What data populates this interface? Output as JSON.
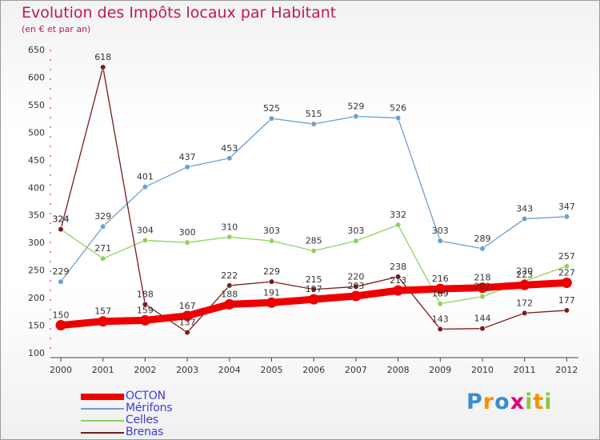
{
  "title": "Evolution des Impôts locaux par Habitant",
  "subtitle": "(en € et par an)",
  "logo": {
    "letters": [
      "P",
      "r",
      "o",
      "x",
      "i",
      "t",
      "i"
    ],
    "colors": [
      "#3b8dd0",
      "#f39200",
      "#3b8dd0",
      "#e2007a",
      "#8cc63f",
      "#f39200",
      "#8cc63f"
    ]
  },
  "chart_data": {
    "type": "line",
    "title": "Evolution des Impôts locaux par Habitant",
    "subtitle": "(en € et par an)",
    "xlabel": "",
    "ylabel": "",
    "x": [
      "2000",
      "2001",
      "2002",
      "2003",
      "2004",
      "2005",
      "2006",
      "2007",
      "2008",
      "2009",
      "2010",
      "2011",
      "2012"
    ],
    "ylim": [
      100,
      650
    ],
    "yticks": [
      100,
      150,
      200,
      250,
      300,
      350,
      400,
      450,
      500,
      550,
      600,
      650
    ],
    "grid": false,
    "legend_position": "bottom-left",
    "series": [
      {
        "name": "OCTON",
        "color": "#ee0000",
        "thick": true,
        "labelColor": "#333333",
        "values": [
          150,
          157,
          159,
          167,
          188,
          191,
          197,
          203,
          213,
          216,
          218,
          223,
          227
        ]
      },
      {
        "name": "Mérifons",
        "color": "#6a9fd1",
        "thick": false,
        "labelColor": "#333333",
        "values": [
          229,
          329,
          401,
          437,
          453,
          525,
          515,
          529,
          526,
          303,
          289,
          343,
          347
        ]
      },
      {
        "name": "Celles",
        "color": "#8fd25c",
        "thick": false,
        "labelColor": "#333333",
        "values": [
          324,
          271,
          304,
          300,
          310,
          303,
          285,
          303,
          332,
          189,
          202,
          230,
          257
        ]
      },
      {
        "name": "Brenas",
        "color": "#7a1a1a",
        "thick": false,
        "labelColor": "#333333",
        "values": [
          324,
          618,
          188,
          137,
          222,
          229,
          215,
          220,
          238,
          143,
          144,
          172,
          177
        ]
      }
    ]
  }
}
